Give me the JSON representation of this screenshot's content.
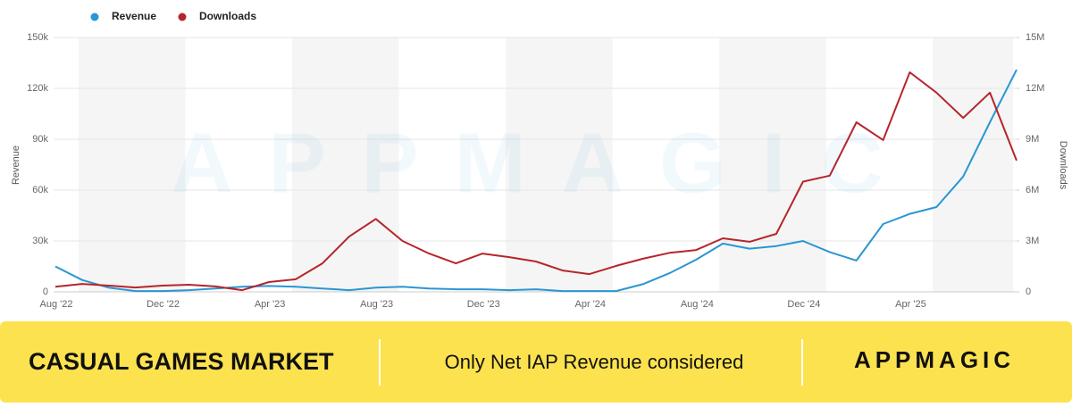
{
  "chart_data": {
    "type": "line",
    "watermark": "APPMAGIC",
    "categories": [
      "Aug '22",
      null,
      null,
      null,
      "Dec '22",
      null,
      null,
      null,
      "Apr '23",
      null,
      null,
      null,
      "Aug '23",
      null,
      null,
      null,
      "Dec '23",
      null,
      null,
      null,
      "Apr '24",
      null,
      null,
      null,
      "Aug '24",
      null,
      null,
      null,
      "Dec '24",
      null,
      null,
      null,
      "Apr '25",
      null,
      null,
      null,
      null
    ],
    "series": [
      {
        "name": "Revenue",
        "color": "#2a96d3",
        "axis": "y",
        "values": [
          15000,
          7000,
          2500,
          500,
          500,
          1000,
          2000,
          3000,
          3500,
          3000,
          2000,
          1000,
          2500,
          3000,
          2000,
          1500,
          1500,
          1000,
          1500,
          500,
          500,
          500,
          4500,
          11000,
          19000,
          28500,
          25500,
          27000,
          30000,
          23500,
          18500,
          40000,
          46000,
          50000,
          68000,
          100000,
          131000
        ]
      },
      {
        "name": "Downloads",
        "color": "#b5252b",
        "axis": "y2",
        "values": [
          300000,
          470000,
          370000,
          260000,
          370000,
          420000,
          320000,
          100000,
          580000,
          740000,
          1680000,
          3260000,
          4300000,
          3000000,
          2260000,
          1680000,
          2260000,
          2050000,
          1790000,
          1260000,
          1050000,
          1530000,
          1950000,
          2300000,
          2470000,
          3160000,
          2950000,
          3420000,
          6500000,
          6850000,
          10000000,
          8950000,
          12950000,
          11750000,
          10260000,
          11750000,
          7740000
        ]
      }
    ],
    "ylabel": "Revenue",
    "y2label": "Downloads",
    "ylim": [
      0,
      150000
    ],
    "yticks": [
      0,
      {
        "value": 30000,
        "label": "30k"
      },
      {
        "value": 60000,
        "label": "60k"
      },
      {
        "value": 90000,
        "label": "90k"
      },
      {
        "value": 120000,
        "label": "120k"
      },
      {
        "value": 150000,
        "label": "150k"
      }
    ],
    "y2lim": [
      0,
      15000000
    ],
    "y2ticks": [
      0,
      {
        "value": 3000000,
        "label": "3M"
      },
      {
        "value": 6000000,
        "label": "6M"
      },
      {
        "value": 9000000,
        "label": "9M"
      },
      {
        "value": 12000000,
        "label": "12M"
      },
      {
        "value": 15000000,
        "label": "15M"
      }
    ],
    "grid": true,
    "legend": "top-left"
  },
  "banner": {
    "title": "CASUAL GAMES MARKET",
    "note": "Only Net IAP Revenue considered",
    "logo": "APPMAGIC"
  }
}
